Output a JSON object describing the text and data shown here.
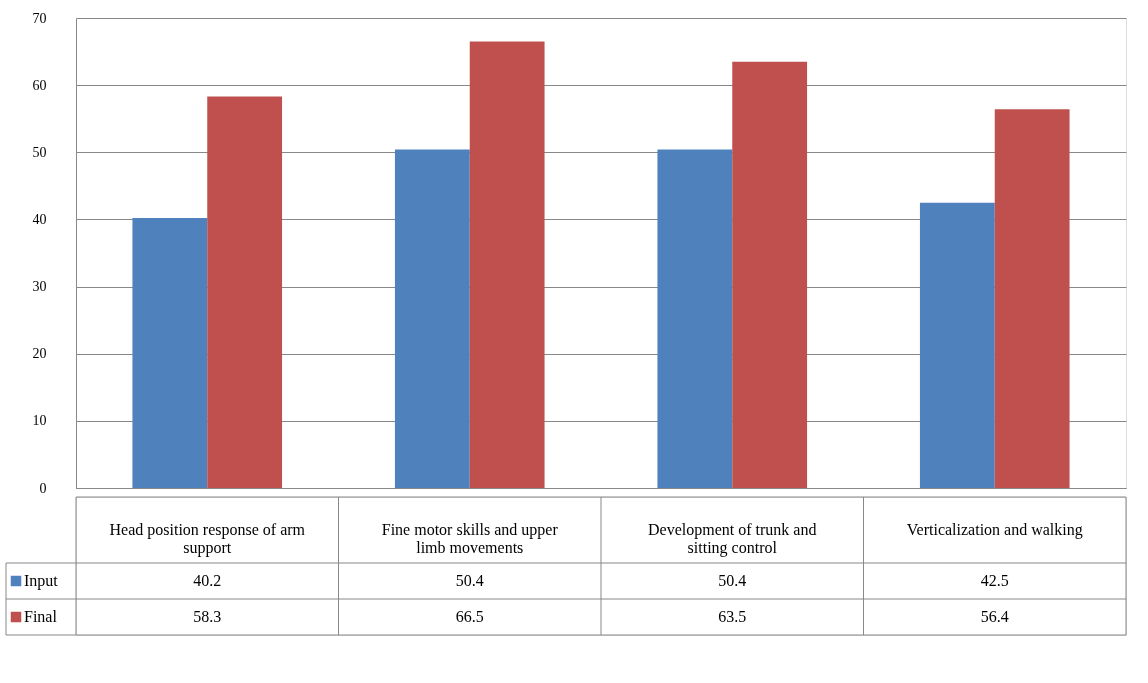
{
  "chart_data": {
    "type": "bar",
    "categories": [
      "Head position response of arm support",
      "Fine motor skills and upper limb movements",
      "Development of trunk and sitting control",
      "Verticalization and walking"
    ],
    "series": [
      {
        "name": "Input",
        "color": "#4f81bd",
        "values": [
          40.2,
          50.4,
          50.4,
          42.5
        ]
      },
      {
        "name": "Final",
        "color": "#c0504d",
        "values": [
          58.3,
          66.5,
          63.5,
          56.4
        ]
      }
    ],
    "ylim": [
      0,
      70
    ],
    "yticks": [
      0,
      10,
      20,
      30,
      40,
      50,
      60,
      70
    ],
    "grid": "y",
    "data_labels": true,
    "legend": "bottom left"
  }
}
